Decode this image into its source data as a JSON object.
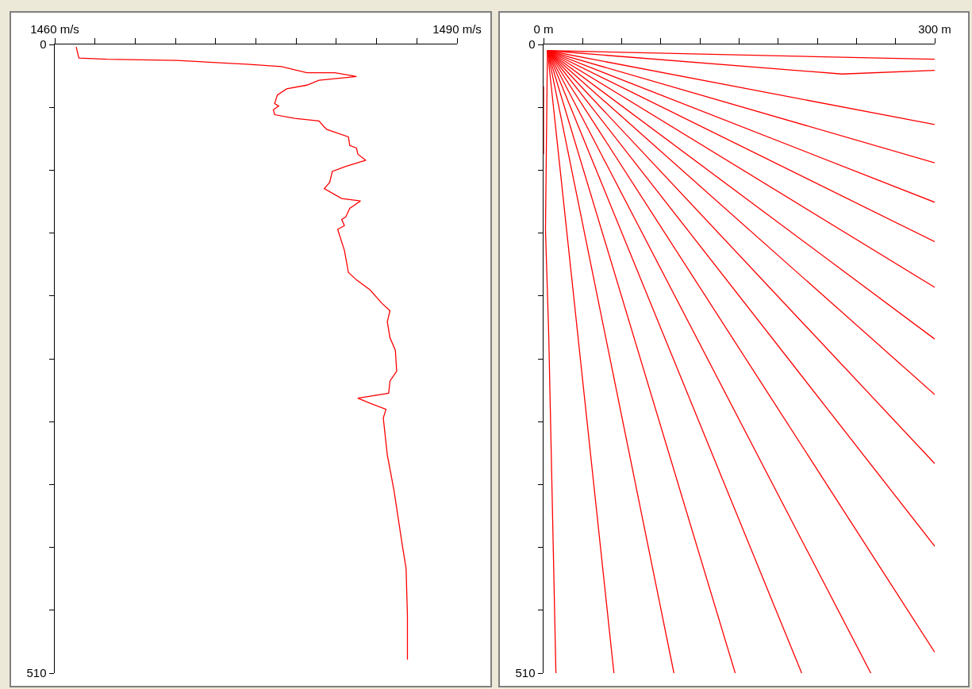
{
  "chart_data": [
    {
      "type": "line",
      "xlim": [
        1460,
        1490
      ],
      "ylim": [
        510,
        0
      ],
      "xticks": [
        {
          "value": 1460,
          "label": "1460 m/s"
        },
        {
          "value": 1463,
          "label": null
        },
        {
          "value": 1466,
          "label": null
        },
        {
          "value": 1469,
          "label": null
        },
        {
          "value": 1472,
          "label": null
        },
        {
          "value": 1475,
          "label": null
        },
        {
          "value": 1478,
          "label": null
        },
        {
          "value": 1481,
          "label": null
        },
        {
          "value": 1484,
          "label": null
        },
        {
          "value": 1487,
          "label": null
        },
        {
          "value": 1490,
          "label": "1490 m/s"
        }
      ],
      "yticks": [
        {
          "value": 0,
          "label": "0"
        },
        {
          "value": 51,
          "label": null
        },
        {
          "value": 102,
          "label": null
        },
        {
          "value": 153,
          "label": null
        },
        {
          "value": 204,
          "label": null
        },
        {
          "value": 255,
          "label": null
        },
        {
          "value": 306,
          "label": null
        },
        {
          "value": 357,
          "label": null
        },
        {
          "value": 408,
          "label": null
        },
        {
          "value": 459,
          "label": null
        },
        {
          "value": 510,
          "label": "510"
        }
      ],
      "series": [
        {
          "color": "#ff0000",
          "x": [
            1461.6,
            1461.8,
            1463.9,
            1469.1,
            1474.3,
            1476.9,
            1478.8,
            1480.9,
            1482.5,
            1479.7,
            1478.8,
            1477.3,
            1476.6,
            1476.4,
            1476.7,
            1476.3,
            1476.4,
            1477.9,
            1479.7,
            1480.1,
            1480.3,
            1481.9,
            1482.0,
            1482.5,
            1482.6,
            1483.2,
            1481.7,
            1480.7,
            1480.5,
            1480.1,
            1481.4,
            1482.8,
            1482.0,
            1481.7,
            1481.4,
            1481.6,
            1481.1,
            1481.6,
            1481.9,
            1482.5,
            1483.5,
            1484.4,
            1485.0,
            1484.8,
            1485.0,
            1485.4,
            1485.5,
            1485.0,
            1484.9,
            1482.6,
            1483.5,
            1484.7,
            1484.5,
            1484.8,
            1485.3,
            1485.9,
            1486.2,
            1486.3,
            1486.3
          ],
          "values": [
            2,
            11,
            12,
            13,
            16,
            18,
            23,
            23,
            26,
            29,
            33,
            36,
            41,
            48,
            50,
            53,
            57,
            60,
            62,
            67,
            69,
            75,
            82,
            84,
            89,
            94,
            99,
            103,
            112,
            117,
            125,
            127,
            133,
            140,
            142,
            147,
            150,
            167,
            185,
            191,
            199,
            210,
            216,
            225,
            238,
            248,
            265,
            273,
            283,
            287,
            291,
            296,
            303,
            333,
            362,
            405,
            425,
            463,
            499
          ]
        }
      ]
    },
    {
      "type": "line",
      "xlim": [
        0,
        300
      ],
      "ylim": [
        510,
        0
      ],
      "xticks": [
        {
          "value": 0,
          "label": "0 m"
        },
        {
          "value": 30,
          "label": null
        },
        {
          "value": 60,
          "label": null
        },
        {
          "value": 90,
          "label": null
        },
        {
          "value": 120,
          "label": null
        },
        {
          "value": 150,
          "label": null
        },
        {
          "value": 180,
          "label": null
        },
        {
          "value": 210,
          "label": null
        },
        {
          "value": 240,
          "label": null
        },
        {
          "value": 270,
          "label": null
        },
        {
          "value": 300,
          "label": "300 m"
        }
      ],
      "yticks": [
        {
          "value": 0,
          "label": "0"
        },
        {
          "value": 51,
          "label": null
        },
        {
          "value": 102,
          "label": null
        },
        {
          "value": 153,
          "label": null
        },
        {
          "value": 204,
          "label": null
        },
        {
          "value": 255,
          "label": null
        },
        {
          "value": 306,
          "label": null
        },
        {
          "value": 357,
          "label": null
        },
        {
          "value": 408,
          "label": null
        },
        {
          "value": 459,
          "label": null
        },
        {
          "value": 510,
          "label": "510"
        }
      ],
      "series": [
        {
          "color": "#ff0000",
          "x": [
            3,
            300
          ],
          "values": [
            5,
            12
          ]
        },
        {
          "color": "#ff0000",
          "x": [
            3,
            229,
            300
          ],
          "values": [
            5,
            24,
            21
          ]
        },
        {
          "color": "#ff0000",
          "x": [
            3,
            300
          ],
          "values": [
            5,
            65
          ]
        },
        {
          "color": "#ff0000",
          "x": [
            3,
            300
          ],
          "values": [
            5,
            96
          ]
        },
        {
          "color": "#ff0000",
          "x": [
            3,
            300
          ],
          "values": [
            5,
            128
          ]
        },
        {
          "color": "#ff0000",
          "x": [
            3,
            300
          ],
          "values": [
            5,
            160
          ]
        },
        {
          "color": "#ff0000",
          "x": [
            3,
            300
          ],
          "values": [
            5,
            197
          ]
        },
        {
          "color": "#ff0000",
          "x": [
            3,
            300
          ],
          "values": [
            5,
            239
          ]
        },
        {
          "color": "#ff0000",
          "x": [
            3,
            300
          ],
          "values": [
            5,
            284
          ]
        },
        {
          "color": "#ff0000",
          "x": [
            3,
            300
          ],
          "values": [
            5,
            340
          ]
        },
        {
          "color": "#ff0000",
          "x": [
            3,
            300
          ],
          "values": [
            5,
            407
          ]
        },
        {
          "color": "#ff0000",
          "x": [
            3,
            300
          ],
          "values": [
            5,
            493
          ]
        },
        {
          "color": "#ff0000",
          "x": [
            3,
            251
          ],
          "values": [
            5,
            510
          ]
        },
        {
          "color": "#ff0000",
          "x": [
            3,
            198
          ],
          "values": [
            5,
            510
          ]
        },
        {
          "color": "#ff0000",
          "x": [
            3,
            147
          ],
          "values": [
            5,
            510
          ]
        },
        {
          "color": "#ff0000",
          "x": [
            3,
            100
          ],
          "values": [
            5,
            510
          ]
        },
        {
          "color": "#ff0000",
          "x": [
            3,
            54
          ],
          "values": [
            5,
            510
          ]
        },
        {
          "color": "#ff0000",
          "x": [
            3,
            1.5,
            4,
            9.5
          ],
          "values": [
            5,
            150,
            236,
            510
          ]
        },
        {
          "color": "#ff0000",
          "x": [
            0,
            0
          ],
          "values": [
            34,
            89
          ]
        }
      ]
    }
  ]
}
